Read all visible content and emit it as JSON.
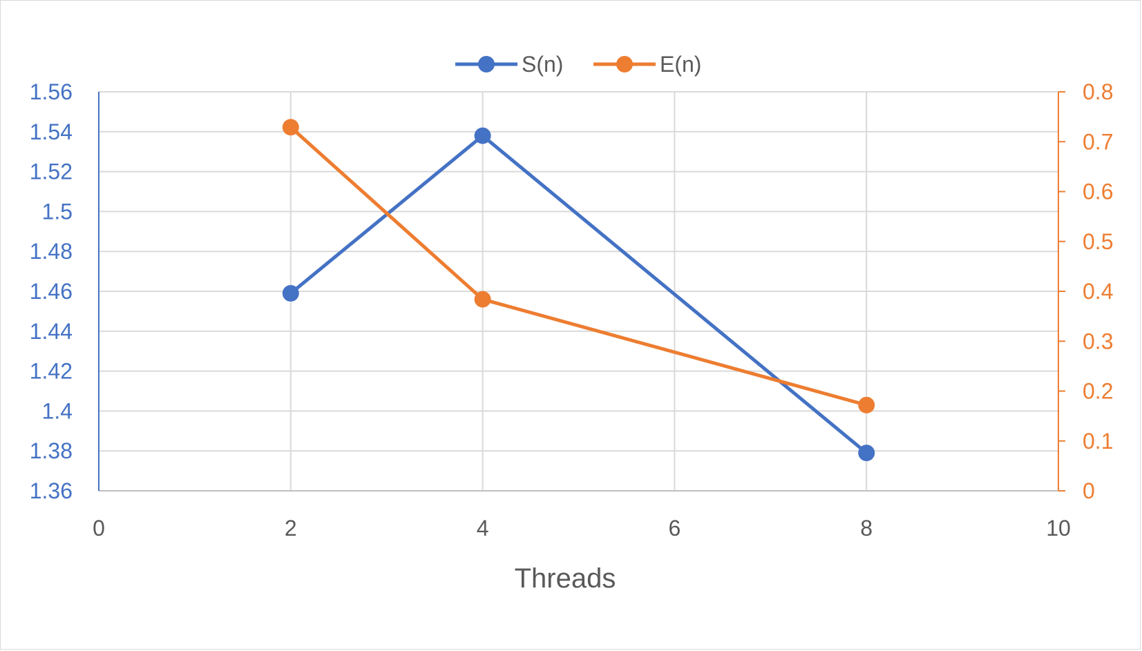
{
  "chart_data": {
    "type": "line",
    "title": "",
    "xlabel": "Threads",
    "ylabel": "",
    "y2label": "",
    "xlim": [
      0,
      10
    ],
    "xticks": [
      "0",
      "2",
      "4",
      "6",
      "8",
      "10"
    ],
    "ylim": [
      1.36,
      1.56
    ],
    "yticks": [
      "1.36",
      "1.38",
      "1.4",
      "1.42",
      "1.44",
      "1.46",
      "1.48",
      "1.5",
      "1.52",
      "1.54",
      "1.56"
    ],
    "y2lim": [
      0,
      0.8
    ],
    "y2ticks": [
      "0",
      "0.1",
      "0.2",
      "0.3",
      "0.4",
      "0.5",
      "0.6",
      "0.7",
      "0.8"
    ],
    "grid": true,
    "legend_position": "top",
    "series": [
      {
        "name": "S(n)",
        "axis": "left",
        "color": "#4472c4",
        "x": [
          2,
          4,
          8
        ],
        "y": [
          1.459,
          1.538,
          1.379
        ]
      },
      {
        "name": "E(n)",
        "axis": "right",
        "color": "#ed7d31",
        "x": [
          2,
          4,
          8
        ],
        "y": [
          0.729,
          0.384,
          0.172
        ]
      }
    ]
  }
}
